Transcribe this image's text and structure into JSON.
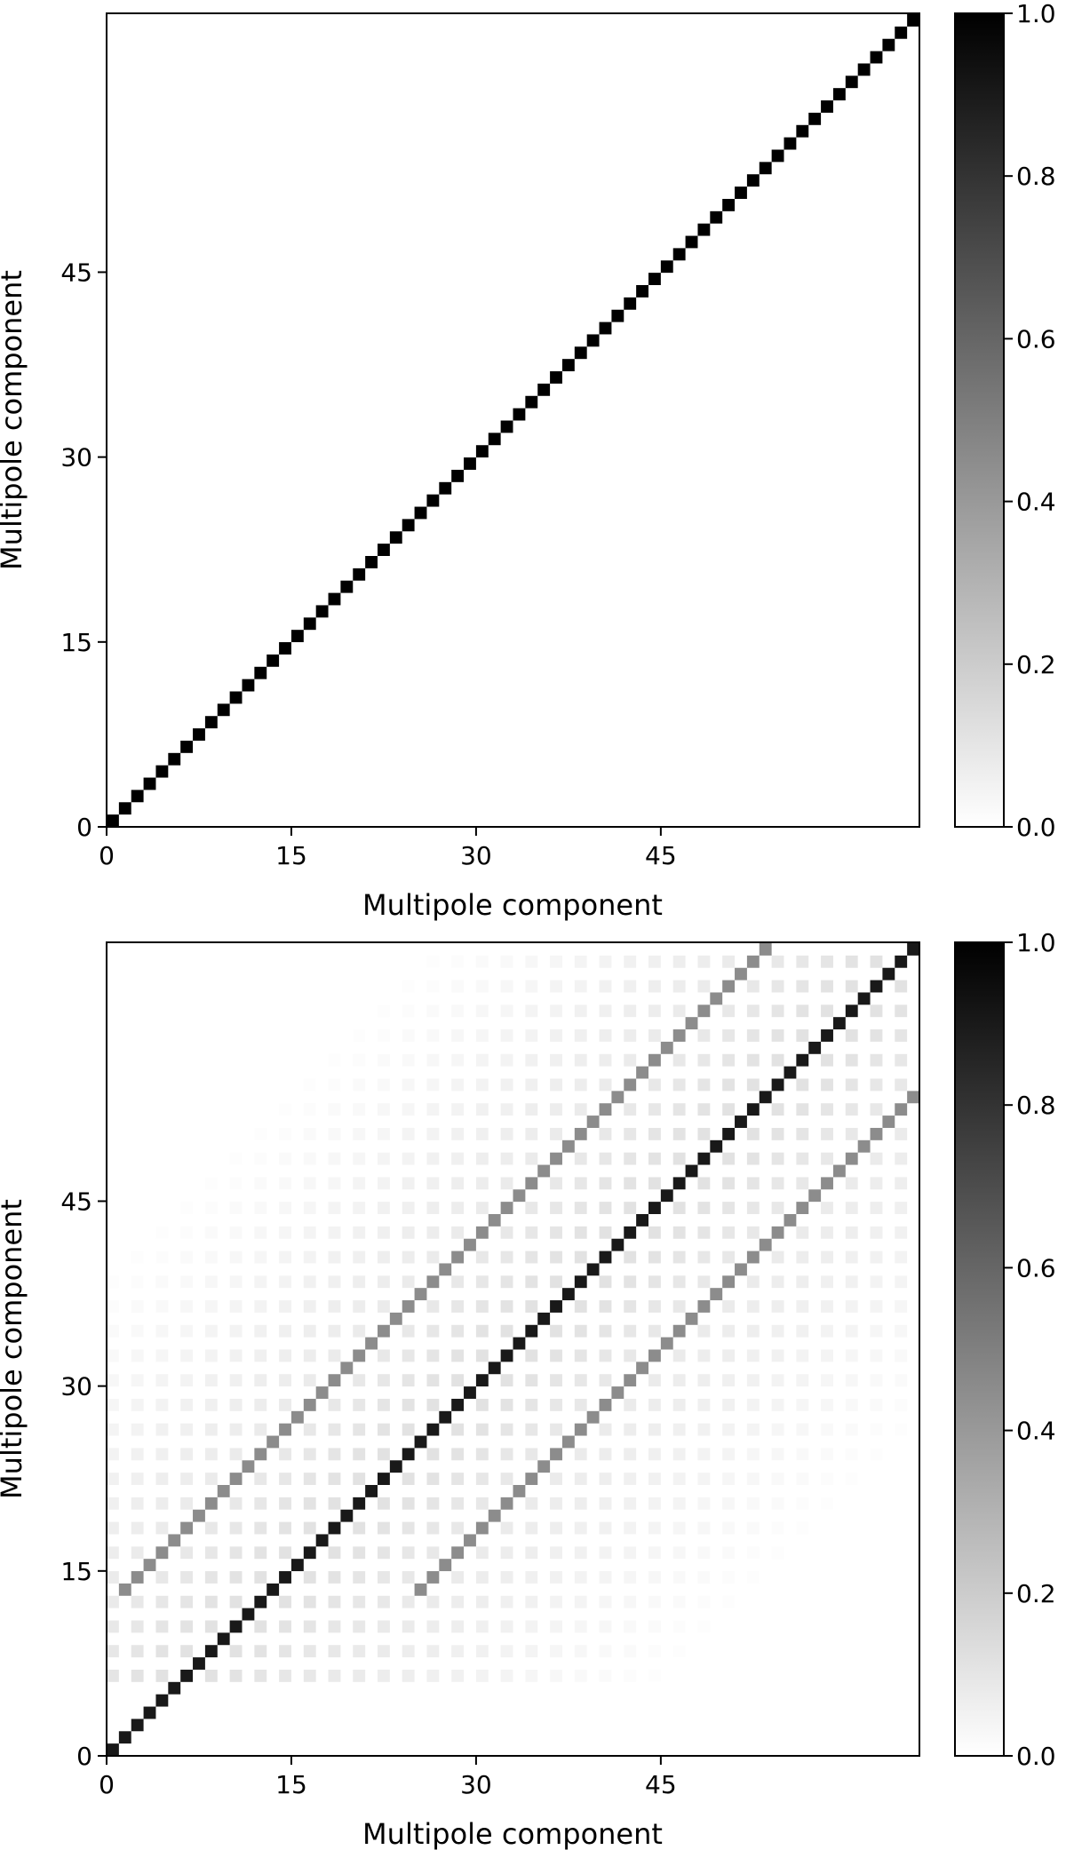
{
  "chart_data": [
    {
      "type": "heatmap",
      "panel": "top",
      "xlabel": "Multipole component",
      "ylabel": "Multipole component",
      "x_ticks": [
        0,
        15,
        30,
        45
      ],
      "y_ticks": [
        0,
        15,
        30,
        45
      ],
      "x_tick_labels": [
        "0",
        "15",
        "30",
        "45"
      ],
      "y_tick_labels": [
        "0",
        "15",
        "30",
        "45"
      ],
      "matrix_description": "identity",
      "colormap": "Greys",
      "colorbar": {
        "range": [
          0.0,
          1.0
        ],
        "ticks": [
          0.0,
          0.2,
          0.4,
          0.6,
          0.8,
          1.0
        ],
        "tick_labels": [
          "0.0",
          "0.2",
          "0.4",
          "0.6",
          "0.8",
          "1.0"
        ]
      },
      "diagonal_value": 1.0,
      "off_diagonal_value": 0.0
    },
    {
      "type": "heatmap",
      "panel": "bottom",
      "xlabel": "Multipole component",
      "ylabel": "Multipole component",
      "x_ticks": [
        0,
        15,
        30,
        45
      ],
      "y_ticks": [
        0,
        15,
        30,
        45
      ],
      "x_tick_labels": [
        "0",
        "15",
        "30",
        "45"
      ],
      "y_tick_labels": [
        "0",
        "15",
        "30",
        "45"
      ],
      "matrix_description": "near-diagonal with sparse off-diagonal structure",
      "colormap": "Greys",
      "colorbar": {
        "range": [
          0.0,
          1.0
        ],
        "ticks": [
          0.0,
          0.2,
          0.4,
          0.6,
          0.8,
          1.0
        ],
        "tick_labels": [
          "0.0",
          "0.2",
          "0.4",
          "0.6",
          "0.8",
          "1.0"
        ]
      },
      "diagonal_value": 0.9,
      "side_band_offsets": [
        -12,
        12
      ],
      "side_band_value": 0.45
    }
  ]
}
